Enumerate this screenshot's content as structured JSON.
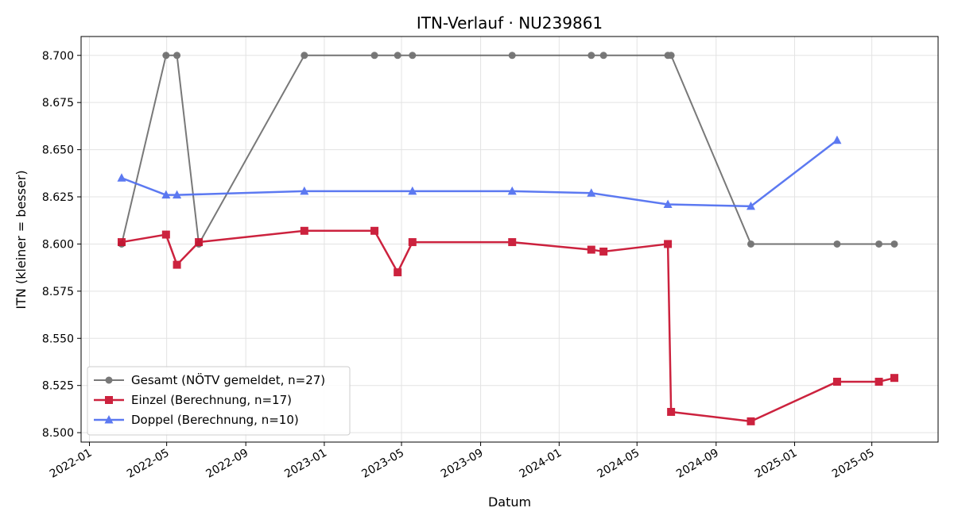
{
  "chart_data": {
    "type": "line",
    "title": "ITN-Verlauf · NU239861",
    "xlabel": "Datum",
    "ylabel": "ITN  (kleiner = besser)",
    "x_type": "date",
    "xlim": [
      "2021-12-19",
      "2025-08-12"
    ],
    "ylim": [
      8.495,
      8.71
    ],
    "x_ticks": [
      "2022-01-01",
      "2022-05-01",
      "2022-09-01",
      "2023-01-01",
      "2023-05-01",
      "2023-09-01",
      "2024-01-01",
      "2024-05-01",
      "2024-09-01",
      "2025-01-01",
      "2025-05-01"
    ],
    "x_tick_labels": [
      "2022-01",
      "2022-05",
      "2022-09",
      "2023-01",
      "2023-05",
      "2023-09",
      "2024-01",
      "2024-05",
      "2024-09",
      "2025-01",
      "2025-05"
    ],
    "y_ticks": [
      8.5,
      8.525,
      8.55,
      8.575,
      8.6,
      8.625,
      8.65,
      8.675,
      8.7
    ],
    "y_tick_labels": [
      "8.500",
      "8.525",
      "8.550",
      "8.575",
      "8.600",
      "8.625",
      "8.650",
      "8.675",
      "8.700"
    ],
    "grid": true,
    "legend_position": "lower-left",
    "series": [
      {
        "name": "Gesamt (NÖTV gemeldet, n=27)",
        "color": "#404040",
        "marker": "circle",
        "points": [
          {
            "x": "2022-02-20",
            "y": 8.6
          },
          {
            "x": "2022-04-30",
            "y": 8.7
          },
          {
            "x": "2022-05-17",
            "y": 8.7
          },
          {
            "x": "2022-06-20",
            "y": 8.6
          },
          {
            "x": "2022-12-01",
            "y": 8.7
          },
          {
            "x": "2023-03-20",
            "y": 8.7
          },
          {
            "x": "2023-04-25",
            "y": 8.7
          },
          {
            "x": "2023-05-18",
            "y": 8.7
          },
          {
            "x": "2023-10-20",
            "y": 8.7
          },
          {
            "x": "2024-02-20",
            "y": 8.7
          },
          {
            "x": "2024-03-10",
            "y": 8.7
          },
          {
            "x": "2024-06-18",
            "y": 8.7
          },
          {
            "x": "2024-06-23",
            "y": 8.7
          },
          {
            "x": "2024-10-25",
            "y": 8.6
          },
          {
            "x": "2025-03-08",
            "y": 8.6
          },
          {
            "x": "2025-05-12",
            "y": 8.6
          },
          {
            "x": "2025-06-05",
            "y": 8.6
          }
        ]
      },
      {
        "name": "Einzel (Berechnung, n=17)",
        "color": "#c8102e",
        "marker": "square",
        "points": [
          {
            "x": "2022-02-20",
            "y": 8.601
          },
          {
            "x": "2022-04-30",
            "y": 8.605
          },
          {
            "x": "2022-05-17",
            "y": 8.589
          },
          {
            "x": "2022-06-20",
            "y": 8.601
          },
          {
            "x": "2022-12-01",
            "y": 8.607
          },
          {
            "x": "2023-03-20",
            "y": 8.607
          },
          {
            "x": "2023-04-25",
            "y": 8.585
          },
          {
            "x": "2023-05-18",
            "y": 8.601
          },
          {
            "x": "2023-10-20",
            "y": 8.601
          },
          {
            "x": "2024-02-20",
            "y": 8.597
          },
          {
            "x": "2024-03-10",
            "y": 8.596
          },
          {
            "x": "2024-06-18",
            "y": 8.6
          },
          {
            "x": "2024-06-23",
            "y": 8.511
          },
          {
            "x": "2024-10-25",
            "y": 8.506
          },
          {
            "x": "2025-03-08",
            "y": 8.527
          },
          {
            "x": "2025-05-12",
            "y": 8.527
          },
          {
            "x": "2025-06-05",
            "y": 8.529
          }
        ]
      },
      {
        "name": "Doppel (Berechnung, n=10)",
        "color": "#4f6ef0",
        "marker": "triangle",
        "points": [
          {
            "x": "2022-02-20",
            "y": 8.635
          },
          {
            "x": "2022-04-30",
            "y": 8.626
          },
          {
            "x": "2022-05-17",
            "y": 8.626
          },
          {
            "x": "2022-12-01",
            "y": 8.628
          },
          {
            "x": "2023-05-18",
            "y": 8.628
          },
          {
            "x": "2023-10-20",
            "y": 8.628
          },
          {
            "x": "2024-02-20",
            "y": 8.627
          },
          {
            "x": "2024-06-18",
            "y": 8.621
          },
          {
            "x": "2024-10-25",
            "y": 8.62
          },
          {
            "x": "2025-03-08",
            "y": 8.655
          }
        ]
      }
    ]
  }
}
